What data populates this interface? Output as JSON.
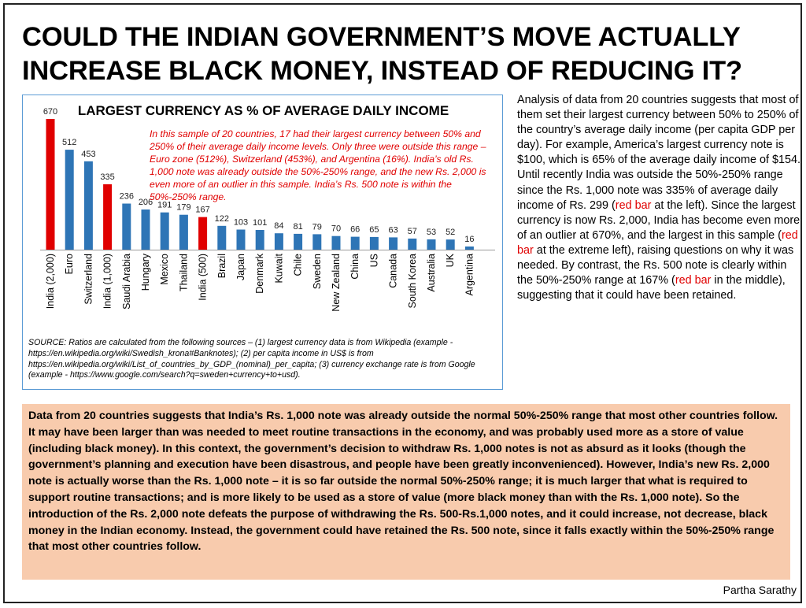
{
  "title": "COULD THE INDIAN GOVERNMENT’S MOVE ACTUALLY INCREASE BLACK MONEY, INSTEAD OF REDUCING IT?",
  "chart_note": "In this sample of 20 countries, 17 had their largest currency between 50% and 250% of their average daily income levels. Only three were outside this range – Euro zone (512%), Switzerland (453%), and Argentina (16%). India’s old Rs. 1,000 note was already outside the 50%-250% range, and the new Rs. 2,000 is even more of an outlier in this sample. India’s Rs. 500 note is within the 50%-250% range.",
  "source_text": "SOURCE: Ratios are calculated from the following sources – (1) largest currency data is from Wikipedia (example - https://en.wikipedia.org/wiki/Swedish_krona#Banknotes); (2) per capita income in US$ is from https://en.wikipedia.org/wiki/List_of_countries_by_GDP_(nominal)_per_capita; (3) currency exchange rate is from Google (example - https://www.google.com/search?q=sweden+currency+to+usd).",
  "analysis": {
    "p1": "Analysis of data from 20 countries suggests that most of them set their largest currency between 50% to 250% of the country’s average daily income (per capita GDP per day). For example, America’s largest currency note is $100, which is 65% of the average daily income of $154. Until recently India was outside the 50%-250% range since the Rs. 1,000 note was 335% of average daily income of Rs. 299 (",
    "red1": "red bar",
    "p2": " at the left). Since the largest currency is now Rs. 2,000, India has become even more of an outlier at 670%, and the largest in this sample (",
    "red2": "red bar",
    "p3": " at the extreme left), raising questions on why it was needed. By contrast, the Rs. 500 note is clearly within the 50%-250% range at 167% (",
    "red3": "red bar",
    "p4": " in the middle), suggesting that it could have been retained."
  },
  "summary": "Data from 20 countries suggests that India’s Rs. 1,000 note was already outside the normal 50%-250%  range that most other countries follow. It may have been larger than was needed to meet routine transactions in the economy, and was probably used more as a store of value (including black money). In this context, the government’s decision to withdraw Rs. 1,000 notes is not as absurd as it looks (though the government’s planning and execution have been disastrous, and people have been greatly inconvenienced). However, India’s new Rs. 2,000 note is actually worse than the Rs. 1,000 note – it is so far outside the normal 50%-250%  range;  it is much larger that what is required to support routine transactions; and is more likely to be used as a store of value (more black money than with the Rs. 1,000 note). So the introduction of the Rs. 2,000 note defeats the purpose of withdrawing the Rs. 500-Rs.1,000 notes, and it could increase, not decrease, black money in the Indian economy. Instead, the government could have retained the Rs. 500 note, since it falls exactly within the 50%-250%  range that most other countries follow.",
  "credit": "Partha Sarathy",
  "colors": {
    "blue": "#2e75b6",
    "red": "#e00000",
    "summary_bg": "#f8cbad",
    "chart_border": "#5b9bd5"
  },
  "chart_data": {
    "type": "bar",
    "title": "LARGEST CURRENCY AS % OF AVERAGE DAILY INCOME",
    "categories": [
      "India (2,000)",
      "Euro",
      "Switzerland",
      "India (1,000)",
      "Saudi Arabia",
      "Hungary",
      "Mexico",
      "Thailand",
      "India (500)",
      "Brazil",
      "Japan",
      "Denmark",
      "Kuwait",
      "Chile",
      "Sweden",
      "New Zealand",
      "China",
      "US",
      "Canada",
      "South Korea",
      "Australia",
      "UK",
      "Argentina"
    ],
    "values": [
      670,
      512,
      453,
      335,
      236,
      206,
      191,
      179,
      167,
      122,
      103,
      101,
      84,
      81,
      79,
      70,
      66,
      65,
      63,
      57,
      53,
      52,
      16
    ],
    "highlight": [
      "India (2,000)",
      "India (1,000)",
      "India (500)"
    ],
    "xlabel": "",
    "ylabel": "",
    "data_labels": true,
    "grid": false
  }
}
